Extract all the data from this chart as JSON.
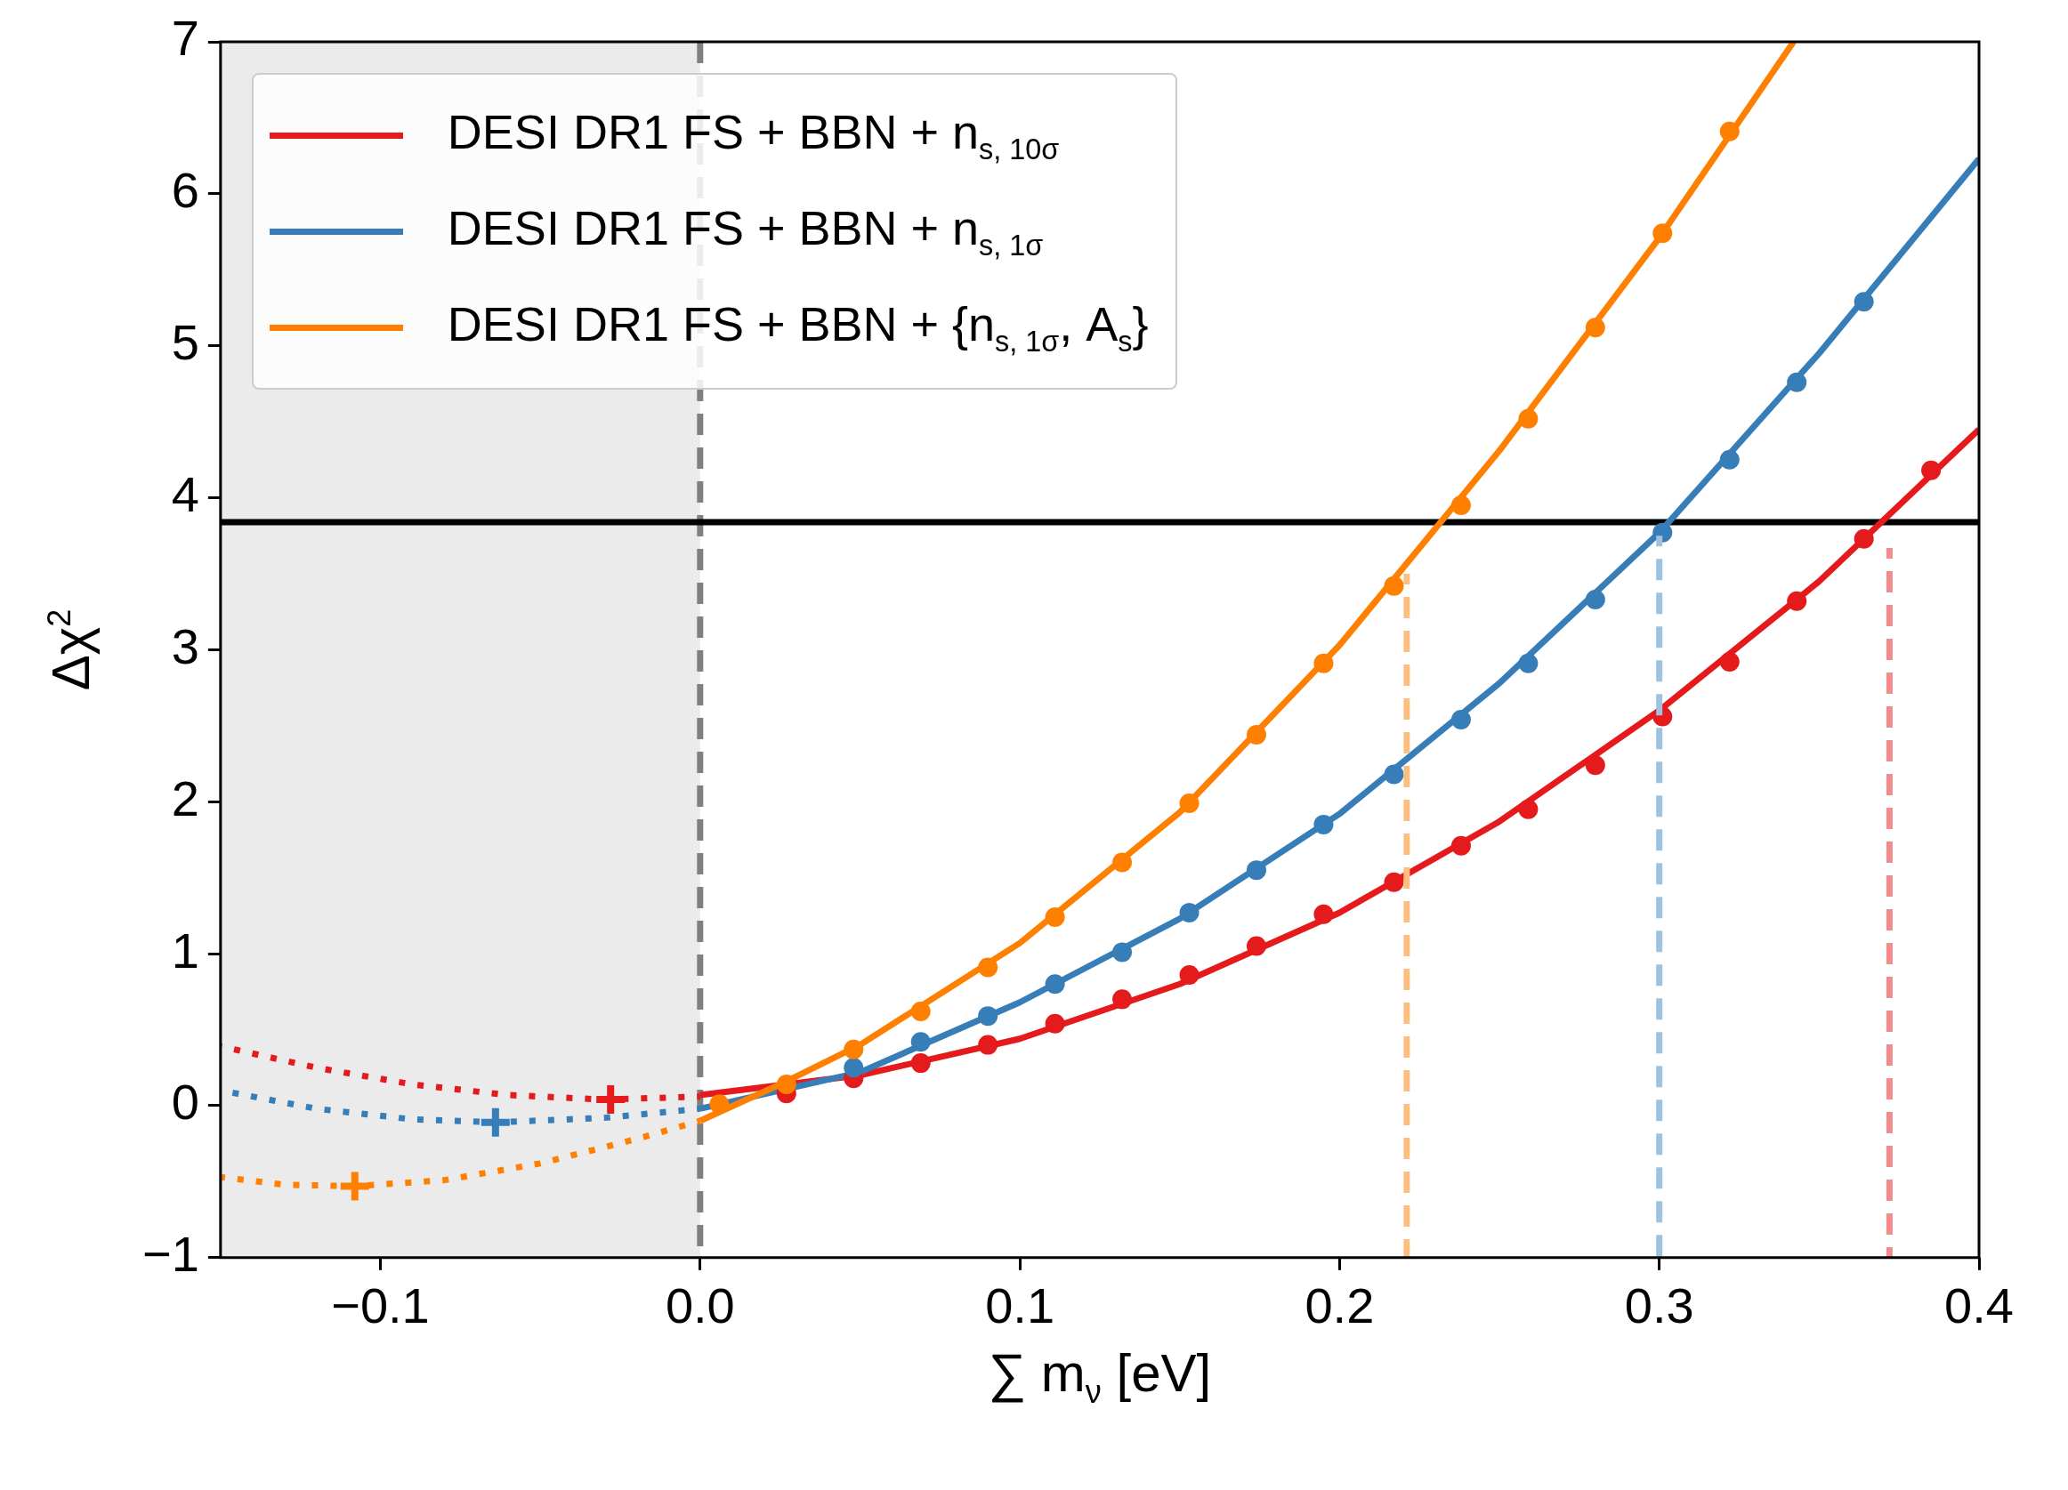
{
  "chart_data": {
    "type": "line",
    "xlabel": "∑ m$_{ν}$ [eV]",
    "ylabel": "Δχ$^{2}$",
    "xlim": [
      -0.15,
      0.4
    ],
    "ylim": [
      -1,
      7
    ],
    "xticks": [
      {
        "value": -0.1,
        "label": "−0.1"
      },
      {
        "value": 0,
        "label": "0.0"
      },
      0.1,
      0.2,
      0.3,
      0.4
    ],
    "yticks": [
      {
        "value": -1,
        "label": "−1"
      },
      0,
      1,
      2,
      3,
      4,
      5,
      6,
      7
    ],
    "grid": false,
    "legend": "top left",
    "bands": [
      {
        "axis": "x",
        "from": -0.15,
        "to": 0,
        "color": "#ebebeb"
      }
    ],
    "ref_lines": [
      {
        "axis": "x",
        "value": 0,
        "color": "#808080",
        "line_style": "dashed"
      },
      {
        "axis": "y",
        "value": 3.84,
        "color": "#000000",
        "line_style": "solid"
      }
    ],
    "series": [
      {
        "name": "DESI DR1 FS + BBN + n$_{s, 10σ}$",
        "color": "#e41a1c",
        "line_style": "solid",
        "marker": "none",
        "x": [
          0,
          0.05,
          0.1,
          0.15,
          0.2,
          0.25,
          0.3,
          0.35,
          0.4
        ],
        "values": [
          0.07,
          0.2,
          0.44,
          0.8,
          1.27,
          1.87,
          2.6,
          3.45,
          4.45
        ]
      },
      {
        "name": "DESI DR1 FS + BBN + n$_{s, 1σ}$",
        "color": "#377eb8",
        "line_style": "solid",
        "marker": "none",
        "x": [
          0,
          0.05,
          0.1,
          0.15,
          0.2,
          0.25,
          0.3,
          0.35,
          0.4
        ],
        "values": [
          -0.02,
          0.22,
          0.68,
          1.23,
          1.92,
          2.78,
          3.77,
          4.95,
          6.23
        ]
      },
      {
        "name": "DESI DR1 FS + BBN + {n$_{s, 1σ}$, A$_{s}$}",
        "color": "#ff7f00",
        "line_style": "solid",
        "marker": "none",
        "x": [
          0,
          0.025,
          0.05,
          0.1,
          0.15,
          0.2,
          0.25,
          0.3,
          0.342
        ],
        "values": [
          -0.1,
          0.14,
          0.4,
          1.07,
          1.93,
          3.03,
          4.31,
          5.71,
          7
        ]
      },
      {
        "type": "scatter",
        "color": "#e41a1c",
        "marker": "circle",
        "x": [
          0.027,
          0.048,
          0.069,
          0.09,
          0.111,
          0.132,
          0.153,
          0.174,
          0.195,
          0.217,
          0.238,
          0.259,
          0.28,
          0.301,
          0.322,
          0.343,
          0.364,
          0.385
        ],
        "values": [
          0.08,
          0.18,
          0.28,
          0.4,
          0.54,
          0.7,
          0.86,
          1.05,
          1.26,
          1.47,
          1.71,
          1.95,
          2.24,
          2.56,
          2.92,
          3.32,
          3.73,
          4.18
        ]
      },
      {
        "type": "scatter",
        "color": "#377eb8",
        "marker": "circle",
        "x": [
          0.048,
          0.069,
          0.09,
          0.111,
          0.132,
          0.153,
          0.174,
          0.195,
          0.217,
          0.238,
          0.259,
          0.28,
          0.301,
          0.322,
          0.343,
          0.364
        ],
        "values": [
          0.25,
          0.42,
          0.59,
          0.8,
          1.01,
          1.27,
          1.55,
          1.85,
          2.18,
          2.54,
          2.91,
          3.33,
          3.77,
          4.25,
          4.76,
          5.29
        ]
      },
      {
        "type": "scatter",
        "color": "#ff7f00",
        "marker": "circle",
        "x": [
          0.006,
          0.027,
          0.048,
          0.069,
          0.09,
          0.111,
          0.132,
          0.153,
          0.174,
          0.195,
          0.217,
          0.238,
          0.259,
          0.28,
          0.301,
          0.322
        ],
        "values": [
          0.01,
          0.14,
          0.37,
          0.62,
          0.91,
          1.24,
          1.6,
          1.99,
          2.44,
          2.91,
          3.42,
          3.95,
          4.52,
          5.12,
          5.74,
          6.41
        ]
      },
      {
        "type": "line",
        "color": "#e41a1c",
        "line_style": "dotted",
        "marker": "none",
        "x": [
          -0.15,
          -0.12,
          -0.09,
          -0.06,
          -0.03,
          0
        ],
        "values": [
          0.39,
          0.25,
          0.14,
          0.07,
          0.04,
          0.06
        ]
      },
      {
        "type": "line",
        "color": "#377eb8",
        "line_style": "dotted",
        "marker": "none",
        "x": [
          -0.15,
          -0.12,
          -0.09,
          -0.064,
          -0.03,
          0
        ],
        "values": [
          0.1,
          -0.02,
          -0.09,
          -0.11,
          -0.08,
          -0.02
        ]
      },
      {
        "type": "line",
        "color": "#ff7f00",
        "line_style": "dotted",
        "marker": "none",
        "x": [
          -0.15,
          -0.13,
          -0.108,
          -0.08,
          -0.05,
          -0.02,
          0
        ],
        "values": [
          -0.47,
          -0.52,
          -0.53,
          -0.49,
          -0.38,
          -0.22,
          -0.1
        ]
      },
      {
        "type": "scatter",
        "color": "#e41a1c",
        "marker": "cross",
        "x": [
          -0.028
        ],
        "values": [
          0.04
        ]
      },
      {
        "type": "scatter",
        "color": "#377eb8",
        "marker": "cross",
        "x": [
          -0.064
        ],
        "values": [
          -0.11
        ]
      },
      {
        "type": "scatter",
        "color": "#ff7f00",
        "marker": "cross",
        "x": [
          -0.108
        ],
        "values": [
          -0.53
        ]
      },
      {
        "type": "line",
        "color": "#fdbf80",
        "line_style": "dashed",
        "marker": "none",
        "x": [
          0.221,
          0.221
        ],
        "values": [
          -1,
          3.5
        ]
      },
      {
        "type": "line",
        "color": "#9ec3e0",
        "line_style": "dashed",
        "marker": "none",
        "x": [
          0.3,
          0.3
        ],
        "values": [
          -1,
          3.75
        ]
      },
      {
        "type": "line",
        "color": "#f08c8c",
        "line_style": "dashed",
        "marker": "none",
        "x": [
          0.372,
          0.372
        ],
        "values": [
          -1,
          3.67
        ]
      }
    ]
  }
}
